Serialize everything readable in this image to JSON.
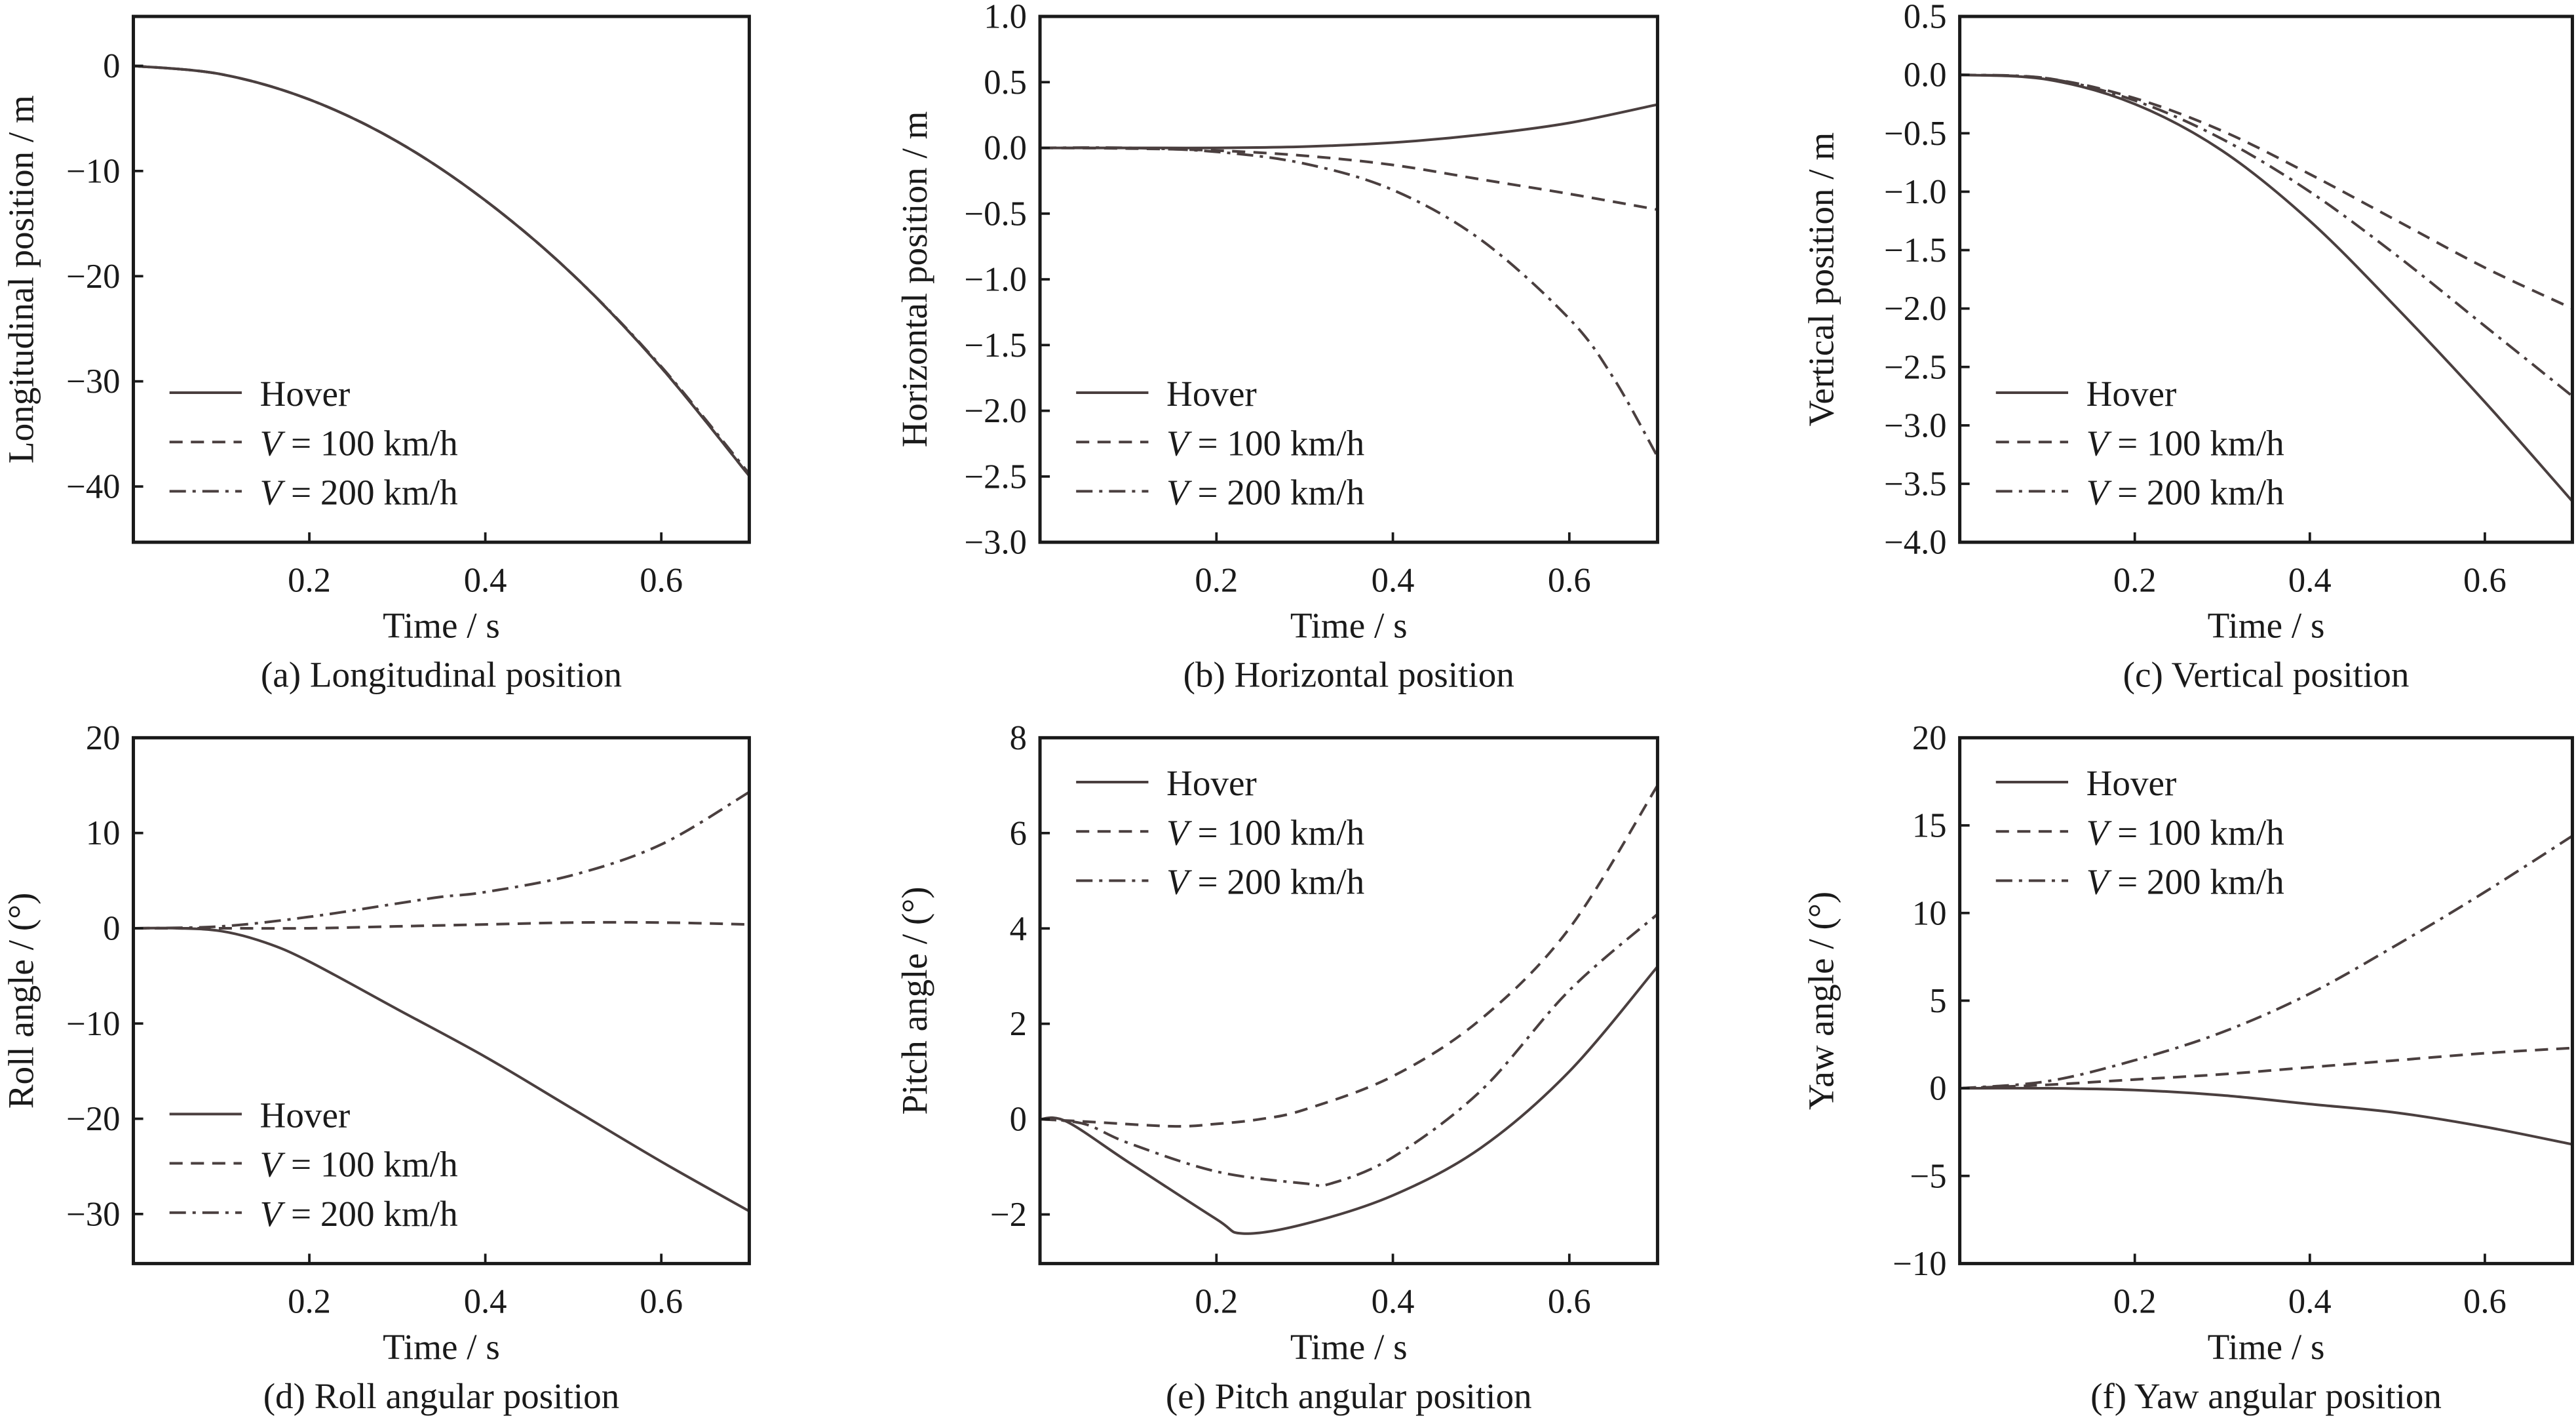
{
  "legend": [
    {
      "prefix": "",
      "label": "Hover",
      "style": "solid"
    },
    {
      "prefix": "V",
      "label": " = 100 km/h",
      "style": "dashed"
    },
    {
      "prefix": "V",
      "label": " = 200 km/h",
      "style": "dashdot"
    }
  ],
  "colors": {
    "line": "#4a3f3f",
    "axis": "#1a1a1a"
  },
  "chart_data": [
    {
      "type": "line",
      "caption": "(a) Longitudinal position",
      "xlabel": "Time / s",
      "ylabel": "Longitudinal position / m",
      "xlim": [
        0,
        0.7
      ],
      "ylim": [
        -45.3,
        4.7
      ],
      "xticks": [
        0.2,
        0.4,
        0.6
      ],
      "xtick_labels": [
        "0.2",
        "0.4",
        "0.6"
      ],
      "yticks": [
        0,
        -10,
        -20,
        -30,
        -40
      ],
      "ytick_labels": [
        "0",
        "−10",
        "−20",
        "−30",
        "−40"
      ],
      "legend_position": "bottom-left",
      "grid": false,
      "series": [
        {
          "name": "Hover",
          "x": [
            0,
            0.1,
            0.2,
            0.3,
            0.4,
            0.5,
            0.6,
            0.7
          ],
          "y": [
            0,
            -0.8,
            -3.2,
            -7.2,
            -12.8,
            -19.9,
            -28.7,
            -39
          ]
        },
        {
          "name": "V = 100 km/h",
          "x": [
            0,
            0.1,
            0.2,
            0.3,
            0.4,
            0.5,
            0.6,
            0.7
          ],
          "y": [
            0,
            -0.8,
            -3.2,
            -7.2,
            -12.8,
            -19.9,
            -28.7,
            -39
          ]
        },
        {
          "name": "V = 200 km/h",
          "x": [
            0,
            0.1,
            0.2,
            0.3,
            0.4,
            0.5,
            0.6,
            0.7
          ],
          "y": [
            0,
            -0.8,
            -3.2,
            -7.2,
            -12.8,
            -19.9,
            -28.6,
            -38.8
          ]
        }
      ]
    },
    {
      "type": "line",
      "caption": "(b) Horizontal position",
      "xlabel": "Time / s",
      "ylabel": "Horizontal position / m",
      "xlim": [
        0,
        0.7
      ],
      "ylim": [
        -3,
        1
      ],
      "xticks": [
        0.2,
        0.4,
        0.6
      ],
      "xtick_labels": [
        "0.2",
        "0.4",
        "0.6"
      ],
      "yticks": [
        1,
        0.5,
        0,
        -0.5,
        -1,
        -1.5,
        -2,
        -2.5,
        -3
      ],
      "ytick_labels": [
        "1.0",
        "0.5",
        "0.0",
        "−0.5",
        "−1.0",
        "−1.5",
        "−2.0",
        "−2.5",
        "−3.0"
      ],
      "legend_position": "bottom-left",
      "grid": false,
      "series": [
        {
          "name": "Hover",
          "x": [
            0,
            0.1,
            0.2,
            0.3,
            0.4,
            0.5,
            0.6,
            0.7
          ],
          "y": [
            0,
            0,
            0,
            0.01,
            0.04,
            0.1,
            0.19,
            0.33
          ]
        },
        {
          "name": "V = 100 km/h",
          "x": [
            0,
            0.1,
            0.2,
            0.3,
            0.4,
            0.5,
            0.6,
            0.7
          ],
          "y": [
            0,
            -0.005,
            -0.02,
            -0.06,
            -0.13,
            -0.24,
            -0.35,
            -0.47
          ]
        },
        {
          "name": "V = 200 km/h",
          "x": [
            0,
            0.1,
            0.2,
            0.3,
            0.4,
            0.5,
            0.6,
            0.65,
            0.7
          ],
          "y": [
            0,
            0,
            -0.03,
            -0.12,
            -0.32,
            -0.7,
            -1.3,
            -1.75,
            -2.35
          ]
        }
      ]
    },
    {
      "type": "line",
      "caption": "(c) Vertical position",
      "xlabel": "Time / s",
      "ylabel": "Vertical position / m",
      "xlim": [
        0,
        0.7
      ],
      "ylim": [
        -4,
        0.5
      ],
      "xticks": [
        0.2,
        0.4,
        0.6
      ],
      "xtick_labels": [
        "0.2",
        "0.4",
        "0.6"
      ],
      "yticks": [
        0.5,
        0,
        -0.5,
        -1,
        -1.5,
        -2,
        -2.5,
        -3,
        -3.5,
        -4
      ],
      "ytick_labels": [
        "0.5",
        "0.0",
        "−0.5",
        "−1.0",
        "−1.5",
        "−2.0",
        "−2.5",
        "−3.0",
        "−3.5",
        "−4.0"
      ],
      "legend_position": "bottom-left",
      "grid": false,
      "series": [
        {
          "name": "Hover",
          "x": [
            0,
            0.1,
            0.2,
            0.3,
            0.4,
            0.5,
            0.6,
            0.7
          ],
          "y": [
            0,
            -0.04,
            -0.25,
            -0.65,
            -1.25,
            -2.0,
            -2.8,
            -3.65
          ]
        },
        {
          "name": "V = 100 km/h",
          "x": [
            0,
            0.1,
            0.2,
            0.3,
            0.4,
            0.5,
            0.6,
            0.7
          ],
          "y": [
            0,
            -0.03,
            -0.2,
            -0.48,
            -0.85,
            -1.25,
            -1.65,
            -2.0
          ]
        },
        {
          "name": "V = 200 km/h",
          "x": [
            0,
            0.1,
            0.2,
            0.3,
            0.4,
            0.5,
            0.6,
            0.7
          ],
          "y": [
            0,
            -0.03,
            -0.22,
            -0.55,
            -1.0,
            -1.55,
            -2.15,
            -2.75
          ]
        }
      ]
    },
    {
      "type": "line",
      "caption": "(d) Roll angular position",
      "xlabel": "Time / s",
      "ylabel": "Roll angle / (°)",
      "xlim": [
        0,
        0.7
      ],
      "ylim": [
        -35.2,
        20
      ],
      "xticks": [
        0.2,
        0.4,
        0.6
      ],
      "xtick_labels": [
        "0.2",
        "0.4",
        "0.6"
      ],
      "yticks": [
        20,
        10,
        0,
        -10,
        -20,
        -30
      ],
      "ytick_labels": [
        "20",
        "10",
        "0",
        "−10",
        "−20",
        "−30"
      ],
      "legend_position": "bottom-left",
      "grid": false,
      "series": [
        {
          "name": "Hover",
          "x": [
            0,
            0.05,
            0.1,
            0.15,
            0.2,
            0.3,
            0.4,
            0.5,
            0.6,
            0.7
          ],
          "y": [
            0,
            0,
            -0.3,
            -1.5,
            -3.5,
            -8.5,
            -13.5,
            -19,
            -24.5,
            -29.7
          ]
        },
        {
          "name": "V = 100 km/h",
          "x": [
            0,
            0.1,
            0.2,
            0.3,
            0.4,
            0.5,
            0.6,
            0.7
          ],
          "y": [
            0,
            0,
            0,
            0.2,
            0.4,
            0.6,
            0.6,
            0.4
          ]
        },
        {
          "name": "V = 200 km/h",
          "x": [
            0,
            0.1,
            0.2,
            0.3,
            0.35,
            0.4,
            0.5,
            0.6,
            0.7
          ],
          "y": [
            0,
            0.2,
            1.2,
            2.6,
            3.3,
            3.8,
            5.6,
            8.8,
            14.3
          ]
        }
      ]
    },
    {
      "type": "line",
      "caption": "(e) Pitch angular position",
      "xlabel": "Time / s",
      "ylabel": "Pitch angle / (°)",
      "xlim": [
        0,
        0.7
      ],
      "ylim": [
        -3.03,
        8
      ],
      "xticks": [
        0.2,
        0.4,
        0.6
      ],
      "xtick_labels": [
        "0.2",
        "0.4",
        "0.6"
      ],
      "yticks": [
        8,
        6,
        4,
        2,
        0,
        -2
      ],
      "ytick_labels": [
        "8",
        "6",
        "4",
        "2",
        "0",
        "−2"
      ],
      "legend_position": "top-left",
      "grid": false,
      "series": [
        {
          "name": "Hover",
          "x": [
            0,
            0.03,
            0.1,
            0.2,
            0.23,
            0.3,
            0.4,
            0.5,
            0.6,
            0.7
          ],
          "y": [
            0,
            -0.05,
            -0.9,
            -2.1,
            -2.4,
            -2.2,
            -1.6,
            -0.6,
            1.0,
            3.2
          ]
        },
        {
          "name": "V = 100 km/h",
          "x": [
            0,
            0.05,
            0.15,
            0.2,
            0.25,
            0.3,
            0.4,
            0.5,
            0.6,
            0.7
          ],
          "y": [
            0,
            -0.05,
            -0.15,
            -0.1,
            0,
            0.2,
            0.9,
            2.1,
            4.0,
            7.0
          ]
        },
        {
          "name": "V = 200 km/h",
          "x": [
            0,
            0.05,
            0.1,
            0.2,
            0.3,
            0.33,
            0.4,
            0.5,
            0.6,
            0.7
          ],
          "y": [
            0,
            -0.1,
            -0.5,
            -1.1,
            -1.35,
            -1.35,
            -0.8,
            0.6,
            2.7,
            4.3
          ]
        }
      ]
    },
    {
      "type": "line",
      "caption": "(f) Yaw angular position",
      "xlabel": "Time / s",
      "ylabel": "Yaw angle / (°)",
      "xlim": [
        0,
        0.7
      ],
      "ylim": [
        -10,
        20
      ],
      "xticks": [
        0.2,
        0.4,
        0.6
      ],
      "xtick_labels": [
        "0.2",
        "0.4",
        "0.6"
      ],
      "yticks": [
        20,
        15,
        10,
        5,
        0,
        -5,
        -10
      ],
      "ytick_labels": [
        "20",
        "15",
        "10",
        "5",
        "0",
        "−5",
        "−10"
      ],
      "legend_position": "top-left",
      "grid": false,
      "series": [
        {
          "name": "Hover",
          "x": [
            0,
            0.1,
            0.2,
            0.3,
            0.4,
            0.5,
            0.6,
            0.7
          ],
          "y": [
            0,
            0,
            -0.1,
            -0.4,
            -0.9,
            -1.4,
            -2.2,
            -3.2
          ]
        },
        {
          "name": "V = 100 km/h",
          "x": [
            0,
            0.1,
            0.2,
            0.3,
            0.4,
            0.5,
            0.6,
            0.7
          ],
          "y": [
            0,
            0.2,
            0.5,
            0.8,
            1.2,
            1.6,
            2.0,
            2.3
          ]
        },
        {
          "name": "V = 200 km/h",
          "x": [
            0,
            0.1,
            0.2,
            0.3,
            0.4,
            0.5,
            0.6,
            0.7
          ],
          "y": [
            0,
            0.4,
            1.6,
            3.2,
            5.4,
            8.2,
            11.2,
            14.4
          ]
        }
      ]
    }
  ]
}
